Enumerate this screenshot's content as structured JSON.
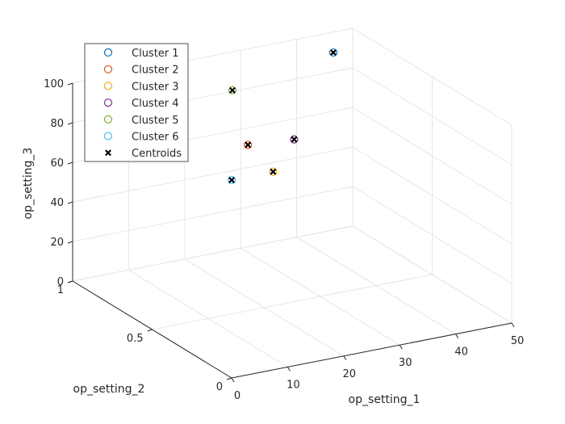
{
  "chart_data": {
    "type": "scatter",
    "view": "3d",
    "title": "",
    "xlabel": "op_setting_1",
    "ylabel": "op_setting_2",
    "zlabel": "op_setting_3",
    "xlim": [
      0,
      50
    ],
    "ylim": [
      0,
      1
    ],
    "zlim": [
      0,
      100
    ],
    "xticks": [
      0,
      10,
      20,
      30,
      40,
      50
    ],
    "yticks": [
      0,
      0.5,
      1
    ],
    "zticks": [
      0,
      20,
      40,
      60,
      80,
      100
    ],
    "grid": true,
    "legend_position": "top-left",
    "series": [
      {
        "name": "Cluster 1",
        "marker": "circle",
        "color": "#0072BD",
        "points": [
          {
            "x": 42,
            "y": 0.84,
            "z": 100
          }
        ]
      },
      {
        "name": "Cluster 2",
        "marker": "circle",
        "color": "#D95319",
        "points": [
          {
            "x": 10,
            "y": 0.25,
            "z": 100
          }
        ]
      },
      {
        "name": "Cluster 3",
        "marker": "circle",
        "color": "#EDB120",
        "points": [
          {
            "x": 25,
            "y": 0.62,
            "z": 60
          }
        ]
      },
      {
        "name": "Cluster 4",
        "marker": "circle",
        "color": "#7E2F8E",
        "points": [
          {
            "x": 35,
            "y": 0.84,
            "z": 60
          }
        ]
      },
      {
        "name": "Cluster 5",
        "marker": "circle",
        "color": "#77AC30",
        "points": [
          {
            "x": 20,
            "y": 0.7,
            "z": 100
          }
        ]
      },
      {
        "name": "Cluster 6",
        "marker": "circle",
        "color": "#4DBEEE",
        "points": [
          {
            "x": 0,
            "y": 0,
            "z": 100
          }
        ]
      }
    ],
    "centroids": {
      "name": "Centroids",
      "marker": "x",
      "color": "#000000",
      "points": [
        {
          "x": 42,
          "y": 0.84,
          "z": 100
        },
        {
          "x": 10,
          "y": 0.25,
          "z": 100
        },
        {
          "x": 25,
          "y": 0.62,
          "z": 60
        },
        {
          "x": 35,
          "y": 0.84,
          "z": 60
        },
        {
          "x": 20,
          "y": 0.7,
          "z": 100
        },
        {
          "x": 0,
          "y": 0,
          "z": 100
        }
      ]
    }
  }
}
